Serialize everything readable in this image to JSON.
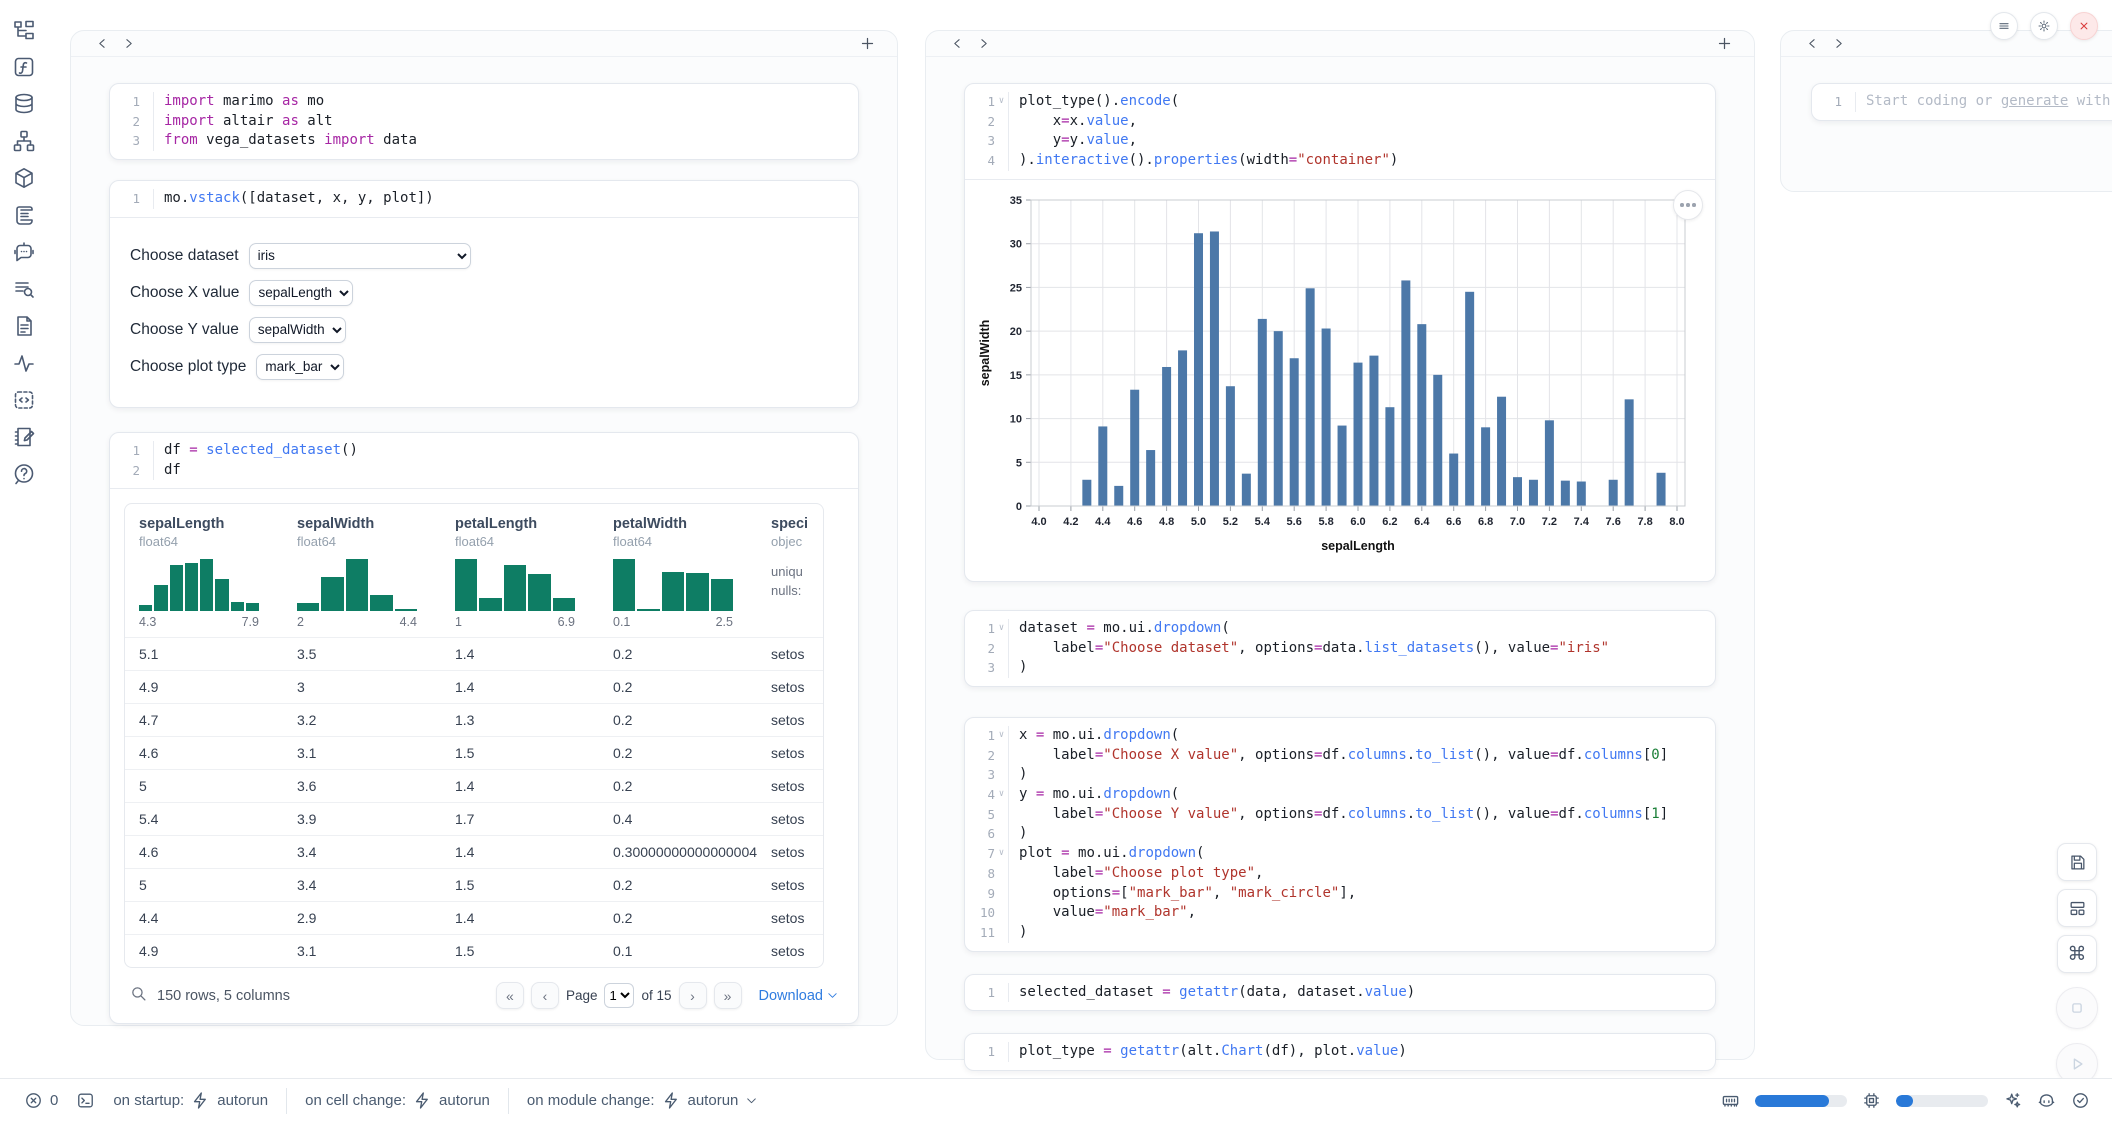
{
  "app": {
    "name": "marimo notebook"
  },
  "sidebar": {
    "icons": [
      "file-explorer-icon",
      "functions-icon",
      "datasources-icon",
      "dependency-graph-icon",
      "packages-icon",
      "logs-icon",
      "chat-icon",
      "scratchpad-icon",
      "documentation-icon",
      "tracing-icon",
      "snippets-icon",
      "notebook-icon",
      "help-icon"
    ]
  },
  "colors": {
    "accent_blue": "#2f7ce0",
    "hist_teal": "#0e7d64",
    "chart_bar": "#4c78a8",
    "error_red": "#d93a3a"
  },
  "cells": {
    "imports": {
      "lines": [
        {
          "s": [
            [
              "kw",
              "import"
            ],
            [
              "pl",
              " marimo "
            ],
            [
              "kw",
              "as"
            ],
            [
              "pl",
              " mo"
            ]
          ]
        },
        {
          "s": [
            [
              "kw",
              "import"
            ],
            [
              "pl",
              " altair "
            ],
            [
              "kw",
              "as"
            ],
            [
              "pl",
              " alt"
            ]
          ]
        },
        {
          "s": [
            [
              "kw",
              "from"
            ],
            [
              "pl",
              " vega_datasets "
            ],
            [
              "kw",
              "import"
            ],
            [
              "pl",
              " data"
            ]
          ]
        }
      ]
    },
    "vstack": {
      "lines": [
        {
          "s": [
            [
              "pl",
              "mo."
            ],
            [
              "fn",
              "vstack"
            ],
            [
              "pl",
              "([dataset, x, y, plot])"
            ]
          ]
        }
      ]
    },
    "df": {
      "lines": [
        {
          "s": [
            [
              "pl",
              "df "
            ],
            [
              "op",
              "="
            ],
            [
              "pl",
              " "
            ],
            [
              "fn",
              "selected_dataset"
            ],
            [
              "pl",
              "()"
            ]
          ]
        },
        {
          "s": [
            [
              "pl",
              "df"
            ]
          ]
        }
      ]
    },
    "plot": {
      "lines": [
        {
          "f": true,
          "s": [
            [
              "pl",
              "plot_type()."
            ],
            [
              "fn",
              "encode"
            ],
            [
              "pl",
              "("
            ]
          ]
        },
        {
          "s": [
            [
              "pl",
              "    x"
            ],
            [
              "op",
              "="
            ],
            [
              "pl",
              "x."
            ],
            [
              "fn",
              "value"
            ],
            [
              "pl",
              ","
            ]
          ]
        },
        {
          "s": [
            [
              "pl",
              "    y"
            ],
            [
              "op",
              "="
            ],
            [
              "pl",
              "y."
            ],
            [
              "fn",
              "value"
            ],
            [
              "pl",
              ","
            ]
          ]
        },
        {
          "s": [
            [
              "pl",
              ")."
            ],
            [
              "fn",
              "interactive"
            ],
            [
              "pl",
              "()."
            ],
            [
              "fn",
              "properties"
            ],
            [
              "pl",
              "(width"
            ],
            [
              "op",
              "="
            ],
            [
              "str",
              "\"container\""
            ],
            [
              "pl",
              ")"
            ]
          ]
        }
      ]
    },
    "dataset_dd": {
      "lines": [
        {
          "f": true,
          "s": [
            [
              "pl",
              "dataset "
            ],
            [
              "op",
              "="
            ],
            [
              "pl",
              " mo.ui."
            ],
            [
              "fn",
              "dropdown"
            ],
            [
              "pl",
              "("
            ]
          ]
        },
        {
          "s": [
            [
              "pl",
              "    label"
            ],
            [
              "op",
              "="
            ],
            [
              "str",
              "\"Choose dataset\""
            ],
            [
              "pl",
              ", options"
            ],
            [
              "op",
              "="
            ],
            [
              "pl",
              "data."
            ],
            [
              "fn",
              "list_datasets"
            ],
            [
              "pl",
              "(), value"
            ],
            [
              "op",
              "="
            ],
            [
              "str",
              "\"iris\""
            ]
          ]
        },
        {
          "s": [
            [
              "pl",
              ")"
            ]
          ]
        }
      ]
    },
    "xyplot_dd": {
      "lines": [
        {
          "f": true,
          "s": [
            [
              "pl",
              "x "
            ],
            [
              "op",
              "="
            ],
            [
              "pl",
              " mo.ui."
            ],
            [
              "fn",
              "dropdown"
            ],
            [
              "pl",
              "("
            ]
          ]
        },
        {
          "s": [
            [
              "pl",
              "    label"
            ],
            [
              "op",
              "="
            ],
            [
              "str",
              "\"Choose X value\""
            ],
            [
              "pl",
              ", options"
            ],
            [
              "op",
              "="
            ],
            [
              "pl",
              "df."
            ],
            [
              "fn",
              "columns"
            ],
            [
              "pl",
              "."
            ],
            [
              "fn",
              "to_list"
            ],
            [
              "pl",
              "(), value"
            ],
            [
              "op",
              "="
            ],
            [
              "pl",
              "df."
            ],
            [
              "fn",
              "columns"
            ],
            [
              "pl",
              "["
            ],
            [
              "num",
              "0"
            ],
            [
              "pl",
              "]"
            ]
          ]
        },
        {
          "s": [
            [
              "pl",
              ")"
            ]
          ]
        },
        {
          "f": true,
          "s": [
            [
              "pl",
              "y "
            ],
            [
              "op",
              "="
            ],
            [
              "pl",
              " mo.ui."
            ],
            [
              "fn",
              "dropdown"
            ],
            [
              "pl",
              "("
            ]
          ]
        },
        {
          "s": [
            [
              "pl",
              "    label"
            ],
            [
              "op",
              "="
            ],
            [
              "str",
              "\"Choose Y value\""
            ],
            [
              "pl",
              ", options"
            ],
            [
              "op",
              "="
            ],
            [
              "pl",
              "df."
            ],
            [
              "fn",
              "columns"
            ],
            [
              "pl",
              "."
            ],
            [
              "fn",
              "to_list"
            ],
            [
              "pl",
              "(), value"
            ],
            [
              "op",
              "="
            ],
            [
              "pl",
              "df."
            ],
            [
              "fn",
              "columns"
            ],
            [
              "pl",
              "["
            ],
            [
              "num",
              "1"
            ],
            [
              "pl",
              "]"
            ]
          ]
        },
        {
          "s": [
            [
              "pl",
              ")"
            ]
          ]
        },
        {
          "f": true,
          "s": [
            [
              "pl",
              "plot "
            ],
            [
              "op",
              "="
            ],
            [
              "pl",
              " mo.ui."
            ],
            [
              "fn",
              "dropdown"
            ],
            [
              "pl",
              "("
            ]
          ]
        },
        {
          "s": [
            [
              "pl",
              "    label"
            ],
            [
              "op",
              "="
            ],
            [
              "str",
              "\"Choose plot type\""
            ],
            [
              "pl",
              ","
            ]
          ]
        },
        {
          "s": [
            [
              "pl",
              "    options"
            ],
            [
              "op",
              "="
            ],
            [
              "pl",
              "["
            ],
            [
              "str",
              "\"mark_bar\""
            ],
            [
              "pl",
              ", "
            ],
            [
              "str",
              "\"mark_circle\""
            ],
            [
              "pl",
              "],"
            ]
          ]
        },
        {
          "s": [
            [
              "pl",
              "    value"
            ],
            [
              "op",
              "="
            ],
            [
              "str",
              "\"mark_bar\""
            ],
            [
              "pl",
              ","
            ]
          ]
        },
        {
          "s": [
            [
              "pl",
              ")"
            ]
          ]
        }
      ]
    },
    "selected": {
      "lines": [
        {
          "s": [
            [
              "pl",
              "selected_dataset "
            ],
            [
              "op",
              "="
            ],
            [
              "pl",
              " "
            ],
            [
              "fn",
              "getattr"
            ],
            [
              "pl",
              "(data, dataset."
            ],
            [
              "fn",
              "value"
            ],
            [
              "pl",
              ")"
            ]
          ]
        }
      ]
    },
    "plot_type_cell": {
      "lines": [
        {
          "s": [
            [
              "pl",
              "plot_type "
            ],
            [
              "op",
              "="
            ],
            [
              "pl",
              " "
            ],
            [
              "fn",
              "getattr"
            ],
            [
              "pl",
              "(alt."
            ],
            [
              "fn",
              "Chart"
            ],
            [
              "pl",
              "(df), plot."
            ],
            [
              "fn",
              "value"
            ],
            [
              "pl",
              ")"
            ]
          ]
        }
      ]
    }
  },
  "controls": [
    {
      "label": "Choose dataset",
      "value": "iris"
    },
    {
      "label": "Choose X value",
      "value": "sepalLength"
    },
    {
      "label": "Choose Y value",
      "value": "sepalWidth"
    },
    {
      "label": "Choose plot type",
      "value": "mark_bar"
    }
  ],
  "table": {
    "columns": [
      {
        "name": "sepalLength",
        "dtype": "float64",
        "min": "4.3",
        "max": "7.9",
        "hist": [
          0.12,
          0.5,
          0.88,
          0.93,
          1.0,
          0.62,
          0.18,
          0.16
        ]
      },
      {
        "name": "sepalWidth",
        "dtype": "float64",
        "min": "2",
        "max": "4.4",
        "hist": [
          0.15,
          0.65,
          1.0,
          0.32,
          0.05
        ]
      },
      {
        "name": "petalLength",
        "dtype": "float64",
        "min": "1",
        "max": "6.9",
        "hist": [
          1.0,
          0.25,
          0.88,
          0.72,
          0.25
        ]
      },
      {
        "name": "petalWidth",
        "dtype": "float64",
        "min": "0.1",
        "max": "2.5",
        "hist": [
          1.0,
          0.05,
          0.75,
          0.74,
          0.62
        ]
      },
      {
        "name": "speci",
        "dtype": "objec",
        "stats": [
          "uniqu",
          "nulls:"
        ]
      }
    ],
    "rows": [
      [
        "5.1",
        "3.5",
        "1.4",
        "0.2",
        "setos"
      ],
      [
        "4.9",
        "3",
        "1.4",
        "0.2",
        "setos"
      ],
      [
        "4.7",
        "3.2",
        "1.3",
        "0.2",
        "setos"
      ],
      [
        "4.6",
        "3.1",
        "1.5",
        "0.2",
        "setos"
      ],
      [
        "5",
        "3.6",
        "1.4",
        "0.2",
        "setos"
      ],
      [
        "5.4",
        "3.9",
        "1.7",
        "0.4",
        "setos"
      ],
      [
        "4.6",
        "3.4",
        "1.4",
        "0.30000000000000004",
        "setos"
      ],
      [
        "5",
        "3.4",
        "1.5",
        "0.2",
        "setos"
      ],
      [
        "4.4",
        "2.9",
        "1.4",
        "0.2",
        "setos"
      ],
      [
        "4.9",
        "3.1",
        "1.5",
        "0.1",
        "setos"
      ]
    ],
    "footer": {
      "summary": "150 rows, 5 columns",
      "page_label": "Page",
      "page_value": "1",
      "of_label": "of 15",
      "download_label": "Download"
    }
  },
  "chart_data": {
    "type": "bar",
    "xlabel": "sepalLength",
    "ylabel": "sepalWidth",
    "xlim": [
      4.0,
      8.0
    ],
    "x_tick_step": 0.2,
    "ylim": [
      0,
      35
    ],
    "y_tick_step": 5,
    "grid": true,
    "x": [
      4.3,
      4.4,
      4.5,
      4.6,
      4.7,
      4.8,
      4.9,
      5.0,
      5.1,
      5.2,
      5.3,
      5.4,
      5.5,
      5.6,
      5.7,
      5.8,
      5.9,
      6.0,
      6.1,
      6.2,
      6.3,
      6.4,
      6.5,
      6.6,
      6.7,
      6.8,
      6.9,
      7.0,
      7.1,
      7.2,
      7.3,
      7.4,
      7.6,
      7.7,
      7.9
    ],
    "y": [
      3.0,
      9.1,
      2.3,
      13.3,
      6.4,
      15.9,
      17.8,
      31.2,
      31.4,
      13.7,
      3.7,
      21.4,
      20.0,
      16.9,
      24.9,
      20.3,
      9.2,
      16.4,
      17.2,
      11.3,
      25.8,
      20.8,
      15.0,
      6.0,
      24.5,
      9.0,
      12.5,
      3.3,
      3.0,
      9.8,
      2.9,
      2.8,
      3.0,
      12.2,
      3.8
    ]
  },
  "ai_cell": {
    "line_no": "1",
    "placeholder_prefix": "Start coding or ",
    "placeholder_link": "generate",
    "placeholder_suffix": " with"
  },
  "status_bar": {
    "error_count": "0",
    "runtime": [
      {
        "label": "on startup:",
        "value": "autorun"
      },
      {
        "label": "on cell change:",
        "value": "autorun"
      },
      {
        "label": "on module change:",
        "value": "autorun"
      }
    ],
    "ram_pct": 80,
    "cpu_pct": 19
  }
}
